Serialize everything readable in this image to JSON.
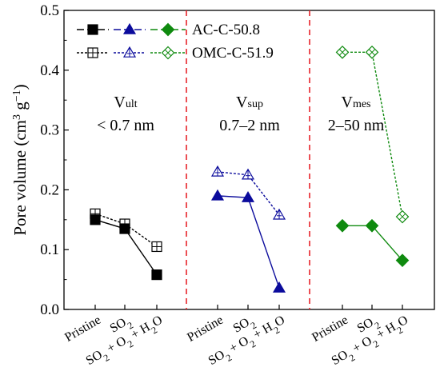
{
  "chart_data": {
    "type": "line",
    "ylabel": "Pore volume (cm³ g⁻¹)",
    "ylabel_parts": {
      "text": "Pore volume (cm",
      "exp1": "3",
      "mid": " g",
      "exp2": "−1",
      "end": ")"
    },
    "ylim": [
      0.0,
      0.5
    ],
    "yticks": [
      "0.0",
      "0.1",
      "0.2",
      "0.3",
      "0.4",
      "0.5"
    ],
    "categories": [
      "Pristine",
      "SO2",
      "SO2 + O2 + H2O"
    ],
    "category_labels": [
      {
        "parts": [
          {
            "t": "Pristine"
          }
        ]
      },
      {
        "parts": [
          {
            "t": "SO"
          },
          {
            "t": "2",
            "sub": true
          }
        ]
      },
      {
        "parts": [
          {
            "t": "SO"
          },
          {
            "t": "2",
            "sub": true
          },
          {
            "t": " + O"
          },
          {
            "t": "2",
            "sub": true
          },
          {
            "t": " + H"
          },
          {
            "t": "2",
            "sub": true
          },
          {
            "t": "O"
          }
        ]
      }
    ],
    "panels": [
      {
        "id": "ult",
        "label_main": "V",
        "label_sub": "ult",
        "range": "< 0.7 nm"
      },
      {
        "id": "sup",
        "label_main": "V",
        "label_sub": "sup",
        "range": "0.7–2 nm"
      },
      {
        "id": "mes",
        "label_main": "V",
        "label_sub": "mes",
        "range": "2–50 nm"
      }
    ],
    "legend": [
      {
        "name": "AC-C-50.8",
        "style": "solid"
      },
      {
        "name": "OMC-C-51.9",
        "style": "dashed"
      }
    ],
    "series": [
      {
        "name": "AC-C-50.8",
        "panel": "ult",
        "values": [
          0.15,
          0.135,
          0.058
        ],
        "color": "#000000",
        "marker": "square",
        "filled": true
      },
      {
        "name": "OMC-C-51.9",
        "panel": "ult",
        "values": [
          0.16,
          0.143,
          0.105
        ],
        "color": "#000000",
        "marker": "square",
        "filled": false
      },
      {
        "name": "AC-C-50.8",
        "panel": "sup",
        "values": [
          0.19,
          0.187,
          0.036
        ],
        "color": "#0b0b9c",
        "marker": "triangle",
        "filled": true
      },
      {
        "name": "OMC-C-51.9",
        "panel": "sup",
        "values": [
          0.23,
          0.225,
          0.158
        ],
        "color": "#0b0b9c",
        "marker": "triangle",
        "filled": false
      },
      {
        "name": "AC-C-50.8",
        "panel": "mes",
        "values": [
          0.14,
          0.14,
          0.082
        ],
        "color": "#0f8a0f",
        "marker": "diamond",
        "filled": true
      },
      {
        "name": "OMC-C-51.9",
        "panel": "mes",
        "values": [
          0.43,
          0.43,
          0.155
        ],
        "color": "#0f8a0f",
        "marker": "diamond",
        "filled": false
      }
    ],
    "separator_color": "#e8232a",
    "grid": false
  }
}
